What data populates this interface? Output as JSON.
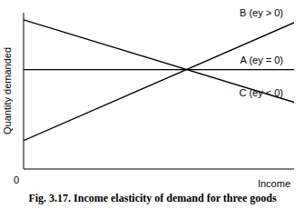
{
  "chart_data": {
    "type": "line",
    "title": "Fig. 3.17. Income elasticity of demand for three goods",
    "x_label": "Income",
    "y_label": "Quantity demanded",
    "x": [
      0,
      10
    ],
    "series": [
      {
        "name": "B (ey > 0)",
        "color": "#000000",
        "values": [
          2,
          10.3
        ]
      },
      {
        "name": "A (ey = 0)",
        "color": "#000000",
        "values": [
          7,
          7
        ]
      },
      {
        "name": "C (ey < 0)",
        "color": "#000000",
        "values": [
          10.5,
          4.7
        ]
      }
    ],
    "xlim": [
      0,
      10
    ],
    "xticks": [
      0
    ],
    "ylim": [
      0,
      11
    ],
    "grid": false,
    "tick_labels": "x"
  }
}
